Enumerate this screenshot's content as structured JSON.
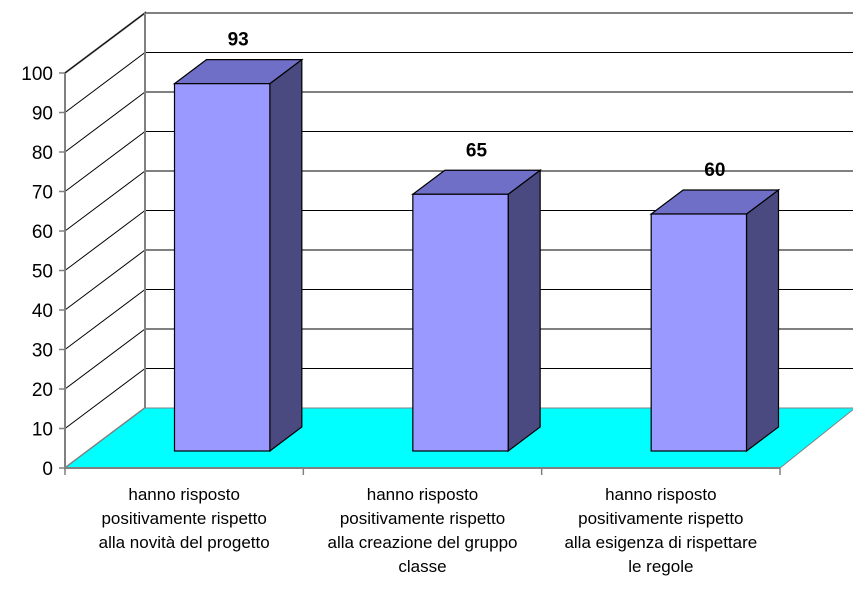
{
  "chart_data": {
    "type": "bar",
    "title": "",
    "xlabel": "",
    "ylabel": "",
    "categories": [
      [
        "hanno risposto",
        "positivamente rispetto",
        "alla novità del progetto"
      ],
      [
        "hanno risposto",
        "positivamente rispetto",
        "alla creazione del gruppo",
        "classe"
      ],
      [
        "hanno risposto",
        "positivamente rispetto",
        "alla esigenza di rispettare",
        "le regole"
      ]
    ],
    "values": [
      93,
      65,
      60
    ],
    "value_labels": [
      "93",
      "65",
      "60"
    ],
    "yticks": [
      "0",
      "10",
      "20",
      "30",
      "40",
      "50",
      "60",
      "70",
      "80",
      "90",
      "100"
    ],
    "ylim": [
      0,
      100
    ],
    "grid": true,
    "legend": "none",
    "colors": {
      "bar_front": "#9999ff",
      "bar_top": "#6f6fc8",
      "bar_side": "#4a4a80",
      "floor": "#00ffff",
      "gridline": "#000000",
      "wall": "#ffffff"
    }
  }
}
